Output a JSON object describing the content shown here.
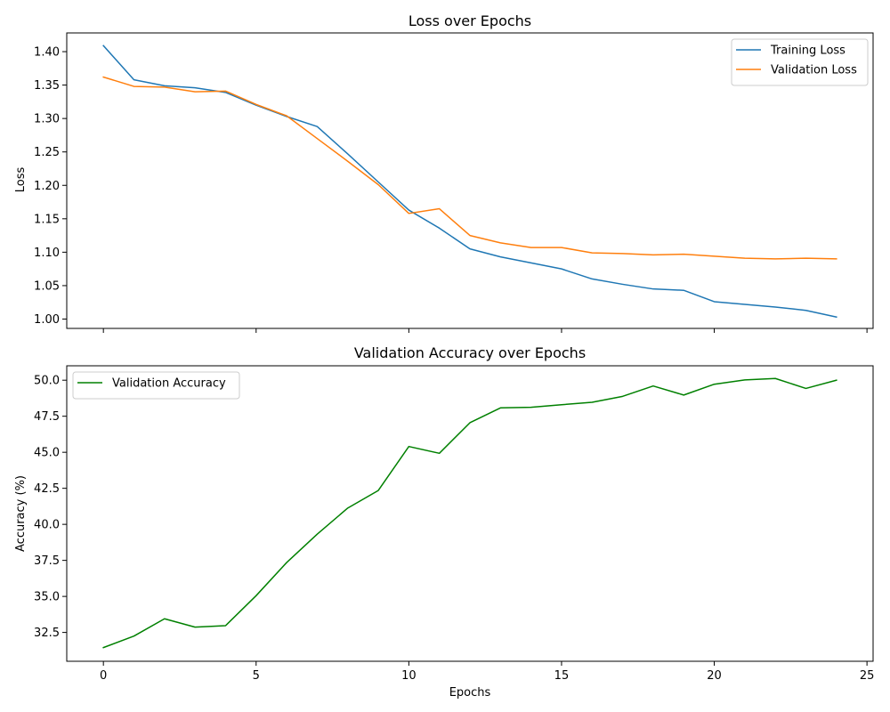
{
  "chart_data": [
    {
      "type": "line",
      "title": "Loss over Epochs",
      "xlabel": "",
      "ylabel": "Loss",
      "xlim": [
        -1.2,
        25.2
      ],
      "ylim": [
        0.986,
        1.428
      ],
      "xticks": [
        0,
        5,
        10,
        15,
        20,
        25
      ],
      "xtick_labels_visible": false,
      "yticks": [
        1.0,
        1.05,
        1.1,
        1.15,
        1.2,
        1.25,
        1.3,
        1.35,
        1.4
      ],
      "ytick_labels": [
        "1.00",
        "1.05",
        "1.10",
        "1.15",
        "1.20",
        "1.25",
        "1.30",
        "1.35",
        "1.40"
      ],
      "grid": false,
      "legend_position": "upper right",
      "x": [
        0,
        1,
        2,
        3,
        4,
        5,
        6,
        7,
        8,
        9,
        10,
        11,
        12,
        13,
        14,
        15,
        16,
        17,
        18,
        19,
        20,
        21,
        22,
        23,
        24
      ],
      "series": [
        {
          "name": "Training Loss",
          "color": "#1f77b4",
          "values": [
            1.409,
            1.358,
            1.349,
            1.346,
            1.339,
            1.32,
            1.303,
            1.288,
            1.247,
            1.205,
            1.163,
            1.136,
            1.105,
            1.093,
            1.084,
            1.075,
            1.06,
            1.052,
            1.045,
            1.043,
            1.026,
            1.022,
            1.018,
            1.013,
            1.003
          ]
        },
        {
          "name": "Validation Loss",
          "color": "#ff7f0e",
          "values": [
            1.362,
            1.348,
            1.347,
            1.34,
            1.341,
            1.321,
            1.304,
            1.27,
            1.236,
            1.201,
            1.158,
            1.165,
            1.125,
            1.114,
            1.107,
            1.107,
            1.099,
            1.098,
            1.096,
            1.097,
            1.094,
            1.091,
            1.09,
            1.091,
            1.09
          ]
        }
      ]
    },
    {
      "type": "line",
      "title": "Validation Accuracy over Epochs",
      "xlabel": "Epochs",
      "ylabel": "Accuracy (%)",
      "xlim": [
        -1.2,
        25.2
      ],
      "ylim": [
        30.5,
        51.0
      ],
      "xticks": [
        0,
        5,
        10,
        15,
        20,
        25
      ],
      "xtick_labels": [
        "0",
        "5",
        "10",
        "15",
        "20",
        "25"
      ],
      "yticks": [
        32.5,
        35.0,
        37.5,
        40.0,
        42.5,
        45.0,
        47.5,
        50.0
      ],
      "ytick_labels": [
        "32.5",
        "35.0",
        "37.5",
        "40.0",
        "42.5",
        "45.0",
        "47.5",
        "50.0"
      ],
      "grid": false,
      "legend_position": "upper left",
      "x": [
        0,
        1,
        2,
        3,
        4,
        5,
        6,
        7,
        8,
        9,
        10,
        11,
        12,
        13,
        14,
        15,
        16,
        17,
        18,
        19,
        20,
        21,
        22,
        23,
        24
      ],
      "series": [
        {
          "name": "Validation Accuracy",
          "color": "#008000",
          "values": [
            31.45,
            32.25,
            33.45,
            32.87,
            32.97,
            35.05,
            37.35,
            39.32,
            41.13,
            42.35,
            45.4,
            44.93,
            47.05,
            48.08,
            48.12,
            48.3,
            48.47,
            48.88,
            49.6,
            48.97,
            49.72,
            50.02,
            50.12,
            49.43,
            50.0
          ]
        }
      ]
    }
  ]
}
